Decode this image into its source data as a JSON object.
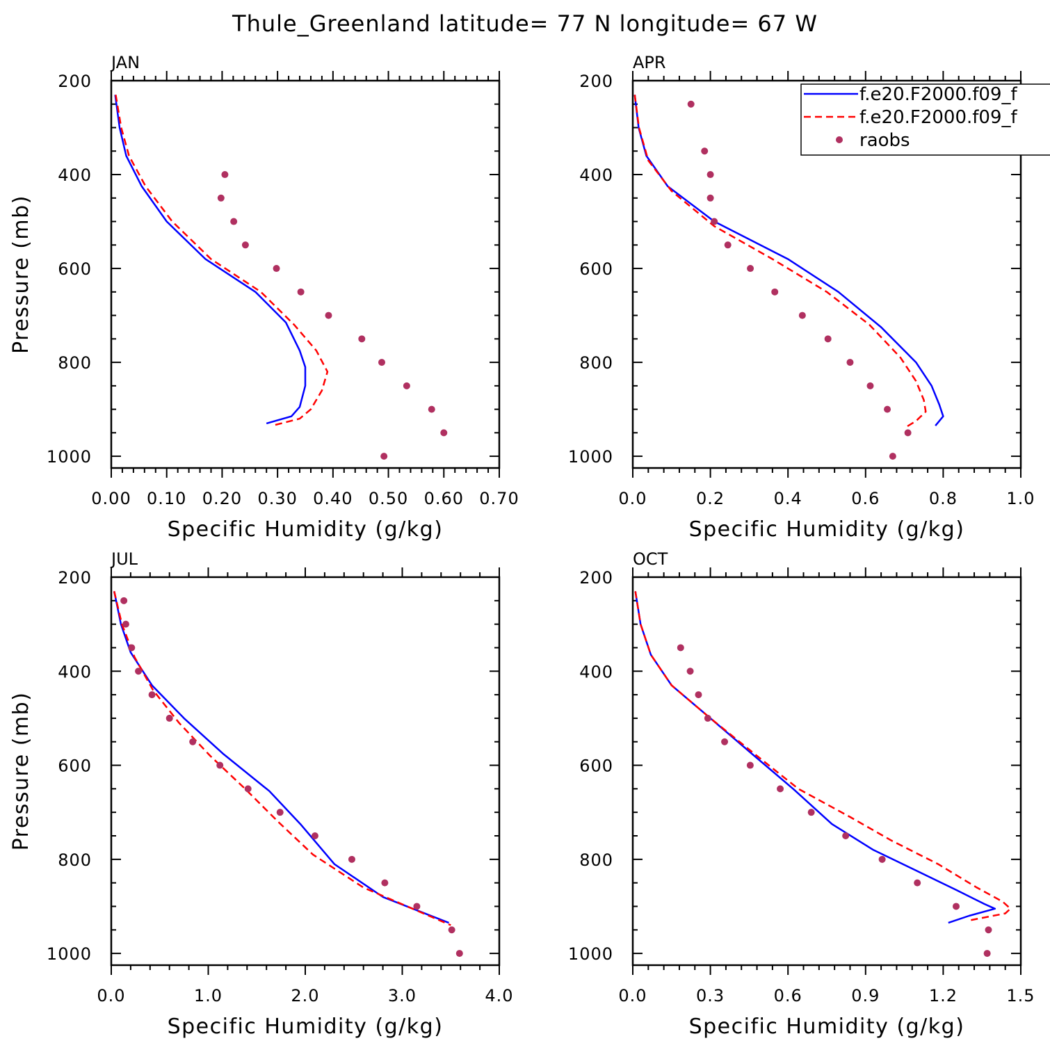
{
  "figure": {
    "title": "Thule_Greenland  latitude= 77 N longitude= 67 W"
  },
  "colors": {
    "model1": "#0000ff",
    "model2": "#ff0000",
    "raobs": "#b03060",
    "axis": "#000000"
  },
  "legend": {
    "entries": [
      {
        "label": "f.e20.F2000.f09_f",
        "style": "solid",
        "color": "#0000ff"
      },
      {
        "label": "f.e20.F2000.f09_f",
        "style": "dashed",
        "color": "#ff0000"
      },
      {
        "label": "raobs",
        "style": "dot",
        "color": "#b03060"
      }
    ]
  },
  "chart_data": [
    {
      "type": "line",
      "panel": "JAN",
      "xlabel": "Specific Humidity (g/kg)",
      "ylabel": "Pressure (mb)",
      "xlim": [
        0,
        0.7
      ],
      "ylim": [
        200,
        1000
      ],
      "x_ticks": [
        "0.00",
        "0.10",
        "0.20",
        "0.30",
        "0.40",
        "0.50",
        "0.60",
        "0.70"
      ],
      "y_ticks": [
        "200",
        "400",
        "600",
        "800",
        "1000"
      ],
      "series": [
        {
          "name": "f.e20.F2000.f09_f (solid)",
          "p": [
            230,
            300,
            360,
            425,
            500,
            580,
            650,
            715,
            775,
            810,
            850,
            895,
            915,
            930
          ],
          "q": [
            0.007,
            0.015,
            0.027,
            0.055,
            0.1,
            0.17,
            0.26,
            0.315,
            0.34,
            0.35,
            0.35,
            0.34,
            0.325,
            0.28
          ]
        },
        {
          "name": "f.e20.F2000.f09_f (dashed)",
          "p": [
            230,
            300,
            360,
            425,
            500,
            580,
            650,
            720,
            775,
            820,
            860,
            900,
            920,
            935
          ],
          "q": [
            0.008,
            0.018,
            0.032,
            0.062,
            0.11,
            0.18,
            0.27,
            0.33,
            0.37,
            0.39,
            0.38,
            0.36,
            0.34,
            0.29
          ]
        },
        {
          "name": "raobs",
          "p": [
            400,
            450,
            500,
            550,
            600,
            650,
            700,
            750,
            800,
            850,
            900,
            950,
            1000
          ],
          "q": [
            0.205,
            0.198,
            0.221,
            0.242,
            0.298,
            0.342,
            0.392,
            0.452,
            0.488,
            0.533,
            0.578,
            0.6,
            0.492
          ]
        }
      ]
    },
    {
      "type": "line",
      "panel": "APR",
      "xlabel": "Specific Humidity (g/kg)",
      "ylabel": "",
      "xlim": [
        0,
        1.0
      ],
      "ylim": [
        200,
        1000
      ],
      "x_ticks": [
        "0.0",
        "0.2",
        "0.4",
        "0.6",
        "0.8",
        "1.0"
      ],
      "y_ticks": [
        "200",
        "400",
        "600",
        "800",
        "1000"
      ],
      "series": [
        {
          "name": "f.e20.F2000.f09_f (solid)",
          "p": [
            230,
            300,
            360,
            425,
            500,
            580,
            650,
            725,
            800,
            850,
            890,
            915,
            935
          ],
          "q": [
            0.005,
            0.015,
            0.035,
            0.09,
            0.21,
            0.4,
            0.53,
            0.64,
            0.73,
            0.77,
            0.79,
            0.8,
            0.78
          ]
        },
        {
          "name": "f.e20.F2000.f09_f (dashed)",
          "p": [
            230,
            300,
            370,
            435,
            510,
            580,
            650,
            720,
            790,
            840,
            880,
            905,
            925,
            940
          ],
          "q": [
            0.005,
            0.016,
            0.04,
            0.1,
            0.21,
            0.36,
            0.5,
            0.61,
            0.69,
            0.73,
            0.75,
            0.755,
            0.73,
            0.7
          ]
        },
        {
          "name": "raobs",
          "p": [
            250,
            350,
            400,
            450,
            500,
            550,
            600,
            650,
            700,
            750,
            800,
            850,
            900,
            950,
            1000
          ],
          "q": [
            0.15,
            0.185,
            0.2,
            0.2,
            0.21,
            0.245,
            0.303,
            0.366,
            0.437,
            0.503,
            0.56,
            0.612,
            0.656,
            0.709,
            0.67
          ]
        }
      ]
    },
    {
      "type": "line",
      "panel": "JUL",
      "xlabel": "Specific Humidity (g/kg)",
      "ylabel": "Pressure (mb)",
      "xlim": [
        0,
        4.0
      ],
      "ylim": [
        200,
        1000
      ],
      "x_ticks": [
        "0.0",
        "1.0",
        "2.0",
        "3.0",
        "4.0"
      ],
      "y_ticks": [
        "200",
        "400",
        "600",
        "800",
        "1000"
      ],
      "series": [
        {
          "name": "f.e20.F2000.f09_f (solid)",
          "p": [
            230,
            300,
            360,
            430,
            500,
            575,
            655,
            725,
            810,
            880,
            935
          ],
          "q": [
            0.03,
            0.1,
            0.2,
            0.42,
            0.75,
            1.15,
            1.63,
            1.95,
            2.3,
            2.8,
            3.48
          ]
        },
        {
          "name": "f.e20.F2000.f09_f (dashed)",
          "p": [
            230,
            300,
            370,
            440,
            510,
            580,
            650,
            720,
            790,
            860,
            940
          ],
          "q": [
            0.03,
            0.11,
            0.24,
            0.43,
            0.7,
            1.02,
            1.38,
            1.72,
            2.08,
            2.6,
            3.5
          ]
        },
        {
          "name": "raobs",
          "p": [
            250,
            300,
            350,
            400,
            450,
            500,
            550,
            600,
            650,
            700,
            750,
            800,
            850,
            900,
            950,
            1000
          ],
          "q": [
            0.13,
            0.15,
            0.21,
            0.28,
            0.42,
            0.6,
            0.84,
            1.12,
            1.41,
            1.74,
            2.1,
            2.48,
            2.82,
            3.15,
            3.51,
            3.59
          ]
        }
      ]
    },
    {
      "type": "line",
      "panel": "OCT",
      "xlabel": "Specific Humidity (g/kg)",
      "ylabel": "",
      "xlim": [
        0,
        1.5
      ],
      "ylim": [
        200,
        1000
      ],
      "x_ticks": [
        "0.0",
        "0.3",
        "0.6",
        "0.9",
        "1.2",
        "1.5"
      ],
      "y_ticks": [
        "200",
        "400",
        "600",
        "800",
        "1000"
      ],
      "series": [
        {
          "name": "f.e20.F2000.f09_f (solid)",
          "p": [
            230,
            300,
            365,
            430,
            500,
            580,
            650,
            725,
            780,
            825,
            865,
            895,
            905,
            920,
            935
          ],
          "q": [
            0.01,
            0.03,
            0.07,
            0.15,
            0.3,
            0.47,
            0.62,
            0.77,
            0.93,
            1.1,
            1.25,
            1.36,
            1.4,
            1.3,
            1.22
          ]
        },
        {
          "name": "f.e20.F2000.f09_f (dashed)",
          "p": [
            230,
            300,
            365,
            430,
            500,
            580,
            650,
            710,
            760,
            810,
            860,
            890,
            905,
            915,
            930
          ],
          "q": [
            0.01,
            0.03,
            0.07,
            0.15,
            0.3,
            0.48,
            0.64,
            0.84,
            1.0,
            1.18,
            1.33,
            1.43,
            1.46,
            1.44,
            1.3
          ]
        },
        {
          "name": "raobs",
          "p": [
            350,
            400,
            450,
            500,
            550,
            600,
            650,
            700,
            750,
            800,
            850,
            900,
            950,
            1000
          ],
          "q": [
            0.185,
            0.222,
            0.254,
            0.29,
            0.355,
            0.454,
            0.57,
            0.69,
            0.823,
            0.964,
            1.1,
            1.25,
            1.375,
            1.37
          ]
        }
      ]
    }
  ]
}
